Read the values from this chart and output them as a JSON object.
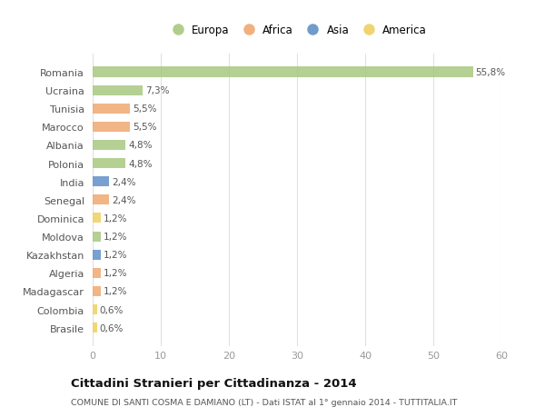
{
  "countries": [
    "Romania",
    "Ucraina",
    "Tunisia",
    "Marocco",
    "Albania",
    "Polonia",
    "India",
    "Senegal",
    "Dominica",
    "Moldova",
    "Kazakhstan",
    "Algeria",
    "Madagascar",
    "Colombia",
    "Brasile"
  ],
  "values": [
    55.8,
    7.3,
    5.5,
    5.5,
    4.8,
    4.8,
    2.4,
    2.4,
    1.2,
    1.2,
    1.2,
    1.2,
    1.2,
    0.6,
    0.6
  ],
  "labels": [
    "55,8%",
    "7,3%",
    "5,5%",
    "5,5%",
    "4,8%",
    "4,8%",
    "2,4%",
    "2,4%",
    "1,2%",
    "1,2%",
    "1,2%",
    "1,2%",
    "1,2%",
    "0,6%",
    "0,6%"
  ],
  "continents": [
    "Europa",
    "Europa",
    "Africa",
    "Africa",
    "Europa",
    "Europa",
    "Asia",
    "Africa",
    "America",
    "Europa",
    "Asia",
    "Africa",
    "Africa",
    "America",
    "America"
  ],
  "colors": {
    "Europa": "#a8c880",
    "Africa": "#f0a870",
    "Asia": "#6090c8",
    "America": "#f0d060"
  },
  "legend_order": [
    "Europa",
    "Africa",
    "Asia",
    "America"
  ],
  "title": "Cittadini Stranieri per Cittadinanza - 2014",
  "subtitle": "COMUNE DI SANTI COSMA E DAMIANO (LT) - Dati ISTAT al 1° gennaio 2014 - TUTTITALIA.IT",
  "xlim": [
    0,
    60
  ],
  "xticks": [
    0,
    10,
    20,
    30,
    40,
    50,
    60
  ],
  "bg_color": "#ffffff",
  "grid_color": "#e0e0e0"
}
